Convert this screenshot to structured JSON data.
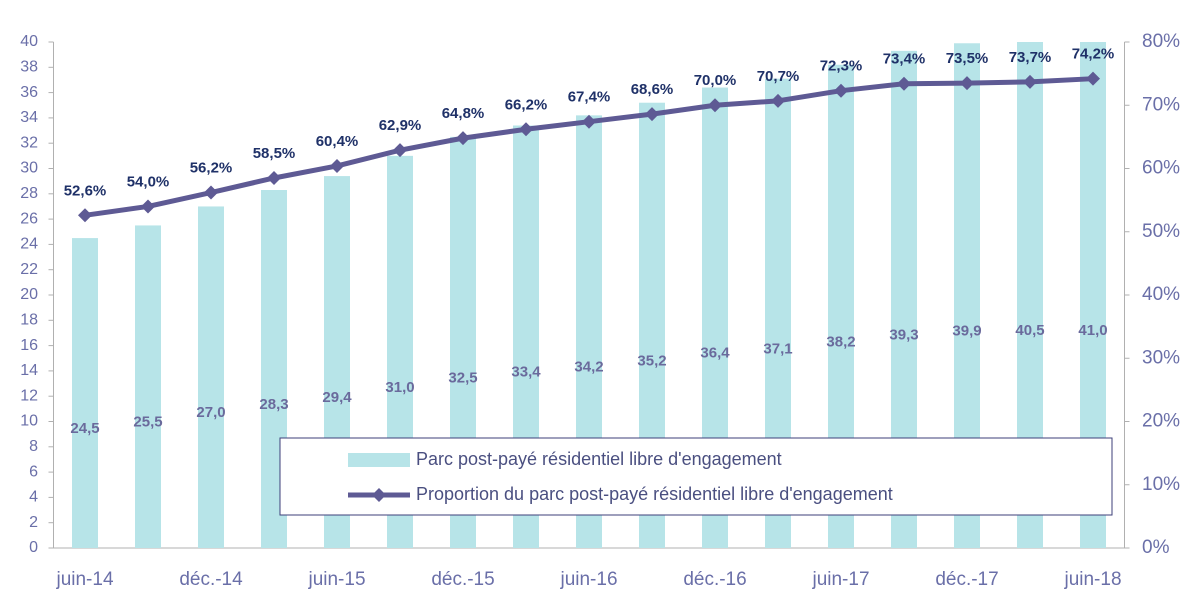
{
  "chart_data": {
    "type": "bar-line",
    "categories": [
      "juin-14",
      null,
      "déc.-14",
      null,
      "juin-15",
      null,
      "déc.-15",
      null,
      "juin-16",
      null,
      "déc.-16",
      null,
      "juin-17",
      null,
      "déc.-17",
      null,
      "juin-18"
    ],
    "series": [
      {
        "name": "Parc post-payé résidentiel libre d'engagement",
        "type": "bar",
        "color": "#b7e4e8",
        "values": [
          24.5,
          25.5,
          27.0,
          28.3,
          29.4,
          31.0,
          32.5,
          33.4,
          34.2,
          35.2,
          36.4,
          37.1,
          38.2,
          39.3,
          39.9,
          40.5,
          41.0
        ],
        "value_labels": [
          "24,5",
          "25,5",
          "27,0",
          "28,3",
          "29,4",
          "31,0",
          "32,5",
          "33,4",
          "34,2",
          "35,2",
          "36,4",
          "37,1",
          "38,2",
          "39,3",
          "39,9",
          "40,5",
          "41,0"
        ]
      },
      {
        "name": "Proportion du parc post-payé résidentiel libre d'engagement",
        "type": "line",
        "color": "#5e5a94",
        "axis": "y2",
        "values": [
          52.6,
          54.0,
          56.2,
          58.5,
          60.4,
          62.9,
          64.8,
          66.2,
          67.4,
          68.6,
          70.0,
          70.7,
          72.3,
          73.4,
          73.5,
          73.7,
          74.2
        ],
        "value_labels": [
          "52,6%",
          "54,0%",
          "56,2%",
          "58,5%",
          "60,4%",
          "62,9%",
          "64,8%",
          "66,2%",
          "67,4%",
          "68,6%",
          "70,0%",
          "70,7%",
          "72,3%",
          "73,4%",
          "73,5%",
          "73,7%",
          "74,2%"
        ]
      }
    ],
    "ylim": [
      0,
      40
    ],
    "yticks": [
      0,
      2,
      4,
      6,
      8,
      10,
      12,
      14,
      16,
      18,
      20,
      22,
      24,
      26,
      28,
      30,
      32,
      34,
      36,
      38,
      40
    ],
    "y2lim": [
      0,
      80
    ],
    "y2ticks": [
      {
        "value": 0,
        "label": "0%"
      },
      {
        "value": 10,
        "label": "10%"
      },
      {
        "value": 20,
        "label": "20%"
      },
      {
        "value": 30,
        "label": "30%"
      },
      {
        "value": 40,
        "label": "40%"
      },
      {
        "value": 50,
        "label": "50%"
      },
      {
        "value": 60,
        "label": "60%"
      },
      {
        "value": 70,
        "label": "70%"
      },
      {
        "value": 80,
        "label": "80%"
      }
    ],
    "grid": false,
    "legend": "bottom"
  }
}
